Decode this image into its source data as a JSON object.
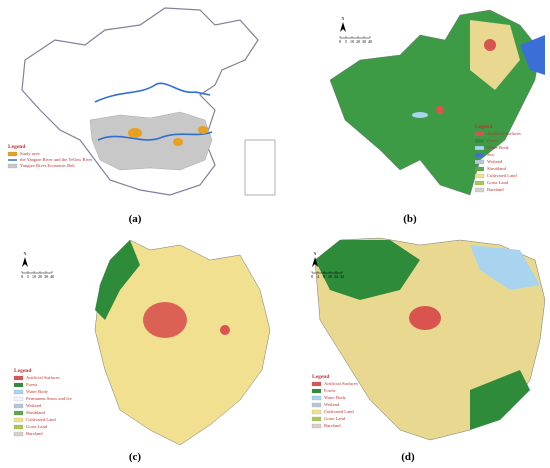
{
  "panels": [
    {
      "label": "(a)",
      "legend_title": "Legend",
      "legend": [
        {
          "name": "Study area",
          "color": "#e8a020"
        },
        {
          "name": "the Yangtze River and the Yellow River",
          "color": "#2f6fd0"
        },
        {
          "name": "Yangtze River Economic Belt",
          "color": "#c8c8c8"
        }
      ]
    },
    {
      "label": "(b)",
      "legend_title": "Legend",
      "north": "N",
      "scale": [
        "0",
        "5",
        "10",
        "20",
        "30",
        "40"
      ],
      "legend": [
        {
          "name": "Artificial Surfaces",
          "color": "#d9534f"
        },
        {
          "name": "Forest",
          "color": "#2e8b3a"
        },
        {
          "name": "Water Body",
          "color": "#a8d4f0"
        },
        {
          "name": "Sea",
          "color": "#3a6fd8"
        },
        {
          "name": "Wetland",
          "color": "#b5c8d8"
        },
        {
          "name": "Shrubland",
          "color": "#5aa84a"
        },
        {
          "name": "Cultivated Land",
          "color": "#f2e08a"
        },
        {
          "name": "Grass Land",
          "color": "#a8c850"
        },
        {
          "name": "Bareland",
          "color": "#d8d0c8"
        }
      ]
    },
    {
      "label": "(c)",
      "legend_title": "Legend",
      "north": "N",
      "scale": [
        "0",
        "5",
        "10",
        "20",
        "30",
        "40"
      ],
      "legend": [
        {
          "name": "Artificial Surfaces",
          "color": "#d9534f"
        },
        {
          "name": "Forest",
          "color": "#2e8b3a"
        },
        {
          "name": "Water Body",
          "color": "#a8d4f0"
        },
        {
          "name": "Permanent Snow and Ice",
          "color": "#eef4fa"
        },
        {
          "name": "Wetland",
          "color": "#b5c8d8"
        },
        {
          "name": "Shrubland",
          "color": "#5aa84a"
        },
        {
          "name": "Cultivated Land",
          "color": "#f2e08a"
        },
        {
          "name": "Grass Land",
          "color": "#a8c850"
        },
        {
          "name": "Bareland",
          "color": "#d8d0c8"
        }
      ]
    },
    {
      "label": "(d)",
      "legend_title": "Legend",
      "north": "N",
      "scale": [
        "0",
        "4",
        "8",
        "16",
        "24",
        "32"
      ],
      "legend": [
        {
          "name": "Artificial Surfaces",
          "color": "#d9534f"
        },
        {
          "name": "Forest",
          "color": "#2e8b3a"
        },
        {
          "name": "Water Body",
          "color": "#a8d4f0"
        },
        {
          "name": "Wetland",
          "color": "#b5c8d8"
        },
        {
          "name": "Cultivated Land",
          "color": "#f2e08a"
        },
        {
          "name": "Grass Land",
          "color": "#a8c850"
        },
        {
          "name": "Bareland",
          "color": "#d8d0c8"
        }
      ]
    }
  ]
}
